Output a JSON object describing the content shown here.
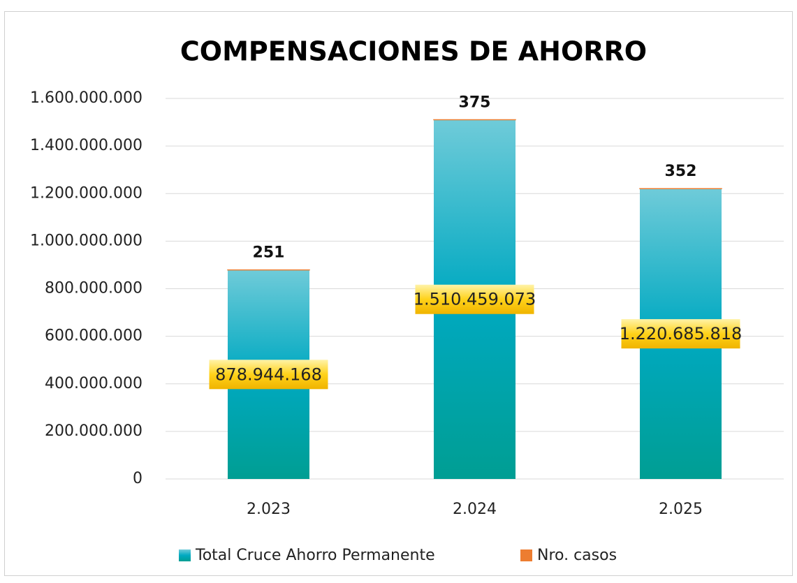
{
  "chart_data": {
    "type": "stacked_bar",
    "title": "COMPENSACIONES DE AHORRO",
    "categories": [
      "2.023",
      "2.024",
      "2.025"
    ],
    "series": [
      {
        "name": "Total Cruce Ahorro Permanente",
        "color": "#00a9c1",
        "values": [
          878944168,
          1510459073,
          1220685818
        ],
        "value_labels": [
          "878.944.168",
          "1.510.459.073",
          "1.220.685.818"
        ]
      },
      {
        "name": "Nro. casos",
        "color": "#ed7d31",
        "values": [
          251,
          375,
          352
        ]
      }
    ],
    "ylim": [
      0,
      1600000000
    ],
    "yticks": [
      0,
      {
        "value": 200000000,
        "label": "200.000.000"
      },
      {
        "value": 400000000,
        "label": "400.000.000"
      },
      {
        "value": 600000000,
        "label": "600.000.000"
      },
      {
        "value": 800000000,
        "label": "800.000.000"
      },
      {
        "value": 1000000000,
        "label": "1.000.000.000"
      },
      {
        "value": 1200000000,
        "label": "1.200.000.000"
      },
      {
        "value": 1400000000,
        "label": "1.400.000.000"
      },
      {
        "value": 1600000000,
        "label": "1.600.000.000"
      }
    ],
    "grid": true,
    "legend": "bottom"
  }
}
